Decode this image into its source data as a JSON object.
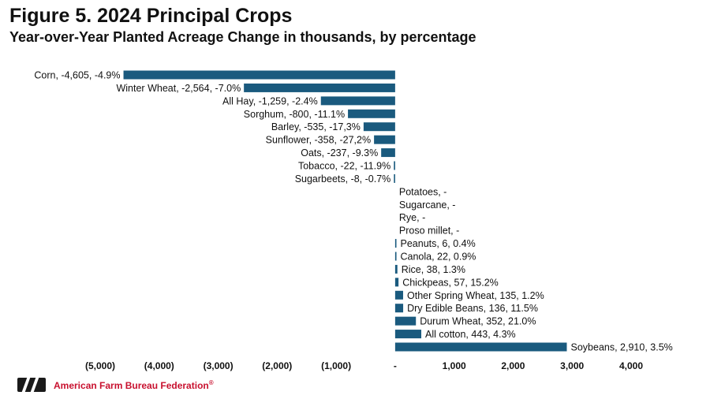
{
  "header": {
    "title": "Figure 5. 2024 Principal Crops",
    "subtitle": "Year-over-Year Planted Acreage Change in thousands, by percentage"
  },
  "footer": {
    "logo_icon": "afbf-logo-icon",
    "organization": "American Farm Bureau Federation",
    "registered_mark": "®"
  },
  "colors": {
    "bar": "#1a5a7e",
    "brand_red": "#c8102e"
  },
  "chart_data": {
    "type": "bar",
    "orientation": "horizontal",
    "xlim": [
      -5000,
      4000
    ],
    "ticks": [
      {
        "value": -5000,
        "label": "(5,000)"
      },
      {
        "value": -4000,
        "label": "(4,000)"
      },
      {
        "value": -3000,
        "label": "(3,000)"
      },
      {
        "value": -2000,
        "label": "(2,000)"
      },
      {
        "value": -1000,
        "label": "(1,000)"
      },
      {
        "value": 0,
        "label": "-"
      },
      {
        "value": 1000,
        "label": "1,000"
      },
      {
        "value": 2000,
        "label": "2,000"
      },
      {
        "value": 3000,
        "label": "3,000"
      },
      {
        "value": 4000,
        "label": "4,000"
      }
    ],
    "bars": [
      {
        "category": "Corn",
        "value": -4605,
        "label": "Corn, -4,605, -4.9%"
      },
      {
        "category": "Winter Wheat",
        "value": -2564,
        "label": "Winter Wheat, -2,564, -7.0%"
      },
      {
        "category": "All Hay",
        "value": -1259,
        "label": "All Hay, -1,259, -2.4%"
      },
      {
        "category": "Sorghum",
        "value": -800,
        "label": "Sorghum, -800, -11.1%"
      },
      {
        "category": "Barley",
        "value": -535,
        "label": "Barley, -535, -17,3%"
      },
      {
        "category": "Sunflower",
        "value": -358,
        "label": "Sunflower,  -358, -27,2%"
      },
      {
        "category": "Oats",
        "value": -237,
        "label": "Oats, -237, -9.3%"
      },
      {
        "category": "Tobacco",
        "value": -22,
        "label": "Tobacco,  -22, -11.9%"
      },
      {
        "category": "Sugarbeets",
        "value": -8,
        "label": "Sugarbeets, -8, -0.7%"
      },
      {
        "category": "Potatoes",
        "value": 0,
        "label": "Potatoes,  -"
      },
      {
        "category": "Sugarcane",
        "value": 0,
        "label": "Sugarcane,  -"
      },
      {
        "category": "Rye",
        "value": 0,
        "label": "Rye,  -"
      },
      {
        "category": "Proso millet",
        "value": 0,
        "label": "Proso millet,  -"
      },
      {
        "category": "Peanuts",
        "value": 6,
        "label": "Peanuts, 6, 0.4%"
      },
      {
        "category": "Canola",
        "value": 22,
        "label": "Canola, 22, 0.9%"
      },
      {
        "category": "Rice",
        "value": 38,
        "label": "Rice, 38, 1.3%"
      },
      {
        "category": "Chickpeas",
        "value": 57,
        "label": "Chickpeas, 57, 15.2%"
      },
      {
        "category": "Other Spring Wheat",
        "value": 135,
        "label": "Other Spring Wheat, 135, 1.2%"
      },
      {
        "category": "Dry Edible Beans",
        "value": 136,
        "label": "Dry Edible Beans, 136, 11.5%"
      },
      {
        "category": "Durum Wheat",
        "value": 352,
        "label": "Durum Wheat, 352, 21.0%"
      },
      {
        "category": "All cotton",
        "value": 443,
        "label": "All cotton, 443, 4.3%"
      },
      {
        "category": "Soybeans",
        "value": 2910,
        "label": "Soybeans, 2,910, 3.5%"
      }
    ]
  }
}
